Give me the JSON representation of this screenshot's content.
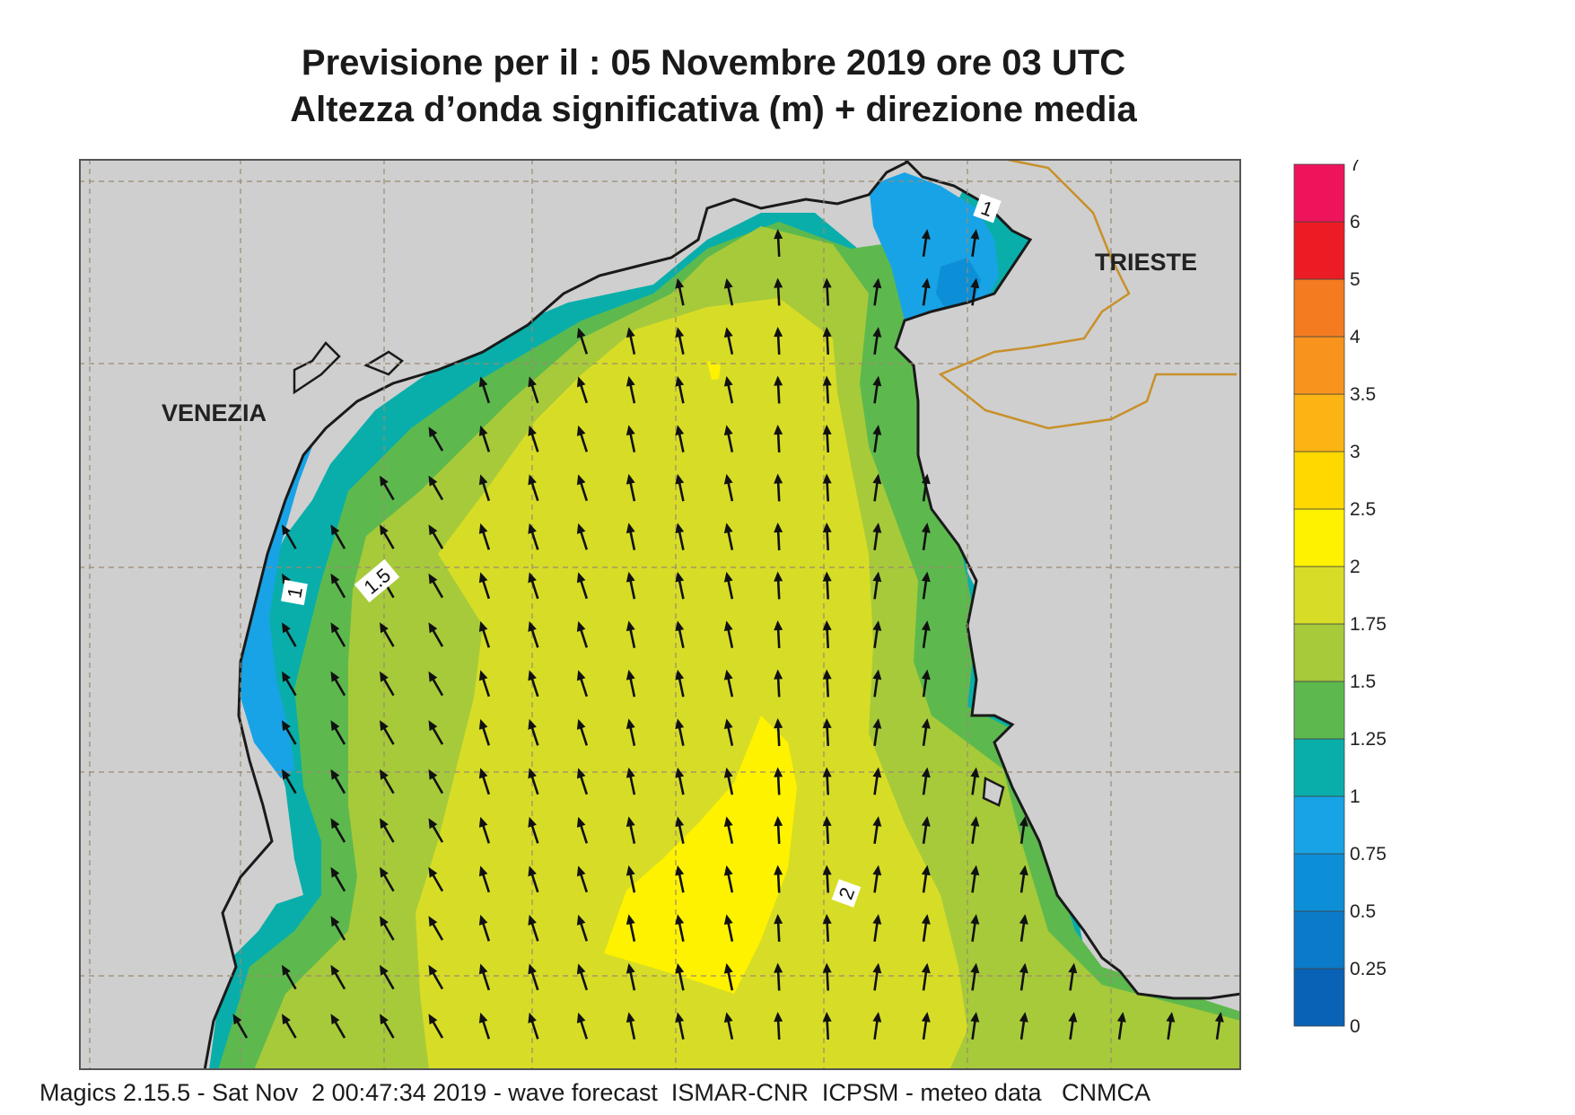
{
  "header": {
    "title_line1": "Previsione per il  :  05 Novembre  2019   ore 03 UTC",
    "title_line2": "Altezza d’onda significativa (m) + direzione media"
  },
  "map": {
    "place_labels": [
      "VENEZIA",
      "TRIESTE"
    ],
    "contour_labels": [
      "1",
      "1.5",
      "1",
      "2"
    ],
    "arrow_direction": "north-northwest",
    "colors": {
      "land": "#cfcfcf",
      "coast": "#1a1a1a",
      "border": "#c8902a",
      "grid": "#9a8a70"
    }
  },
  "legend": {
    "ticks": [
      "0",
      "0.25",
      "0.5",
      "0.75",
      "1",
      "1.25",
      "1.5",
      "1.75",
      "2",
      "2.5",
      "3",
      "3.5",
      "4",
      "5",
      "6",
      "7"
    ],
    "colors": [
      "#0a62b6",
      "#0b7ac8",
      "#0d8fd8",
      "#18a3e6",
      "#09aeaa",
      "#5db94d",
      "#a7ca3a",
      "#d7dd26",
      "#fef200",
      "#ffd800",
      "#fbb414",
      "#f8941d",
      "#f47b20",
      "#ec1c24",
      "#ee145b"
    ]
  },
  "footer": {
    "text": "Magics 2.15.5 - Sat Nov  2 00:47:34 2019 - wave forecast  ISMAR-CNR  ICPSM - meteo data   CNMCA"
  }
}
